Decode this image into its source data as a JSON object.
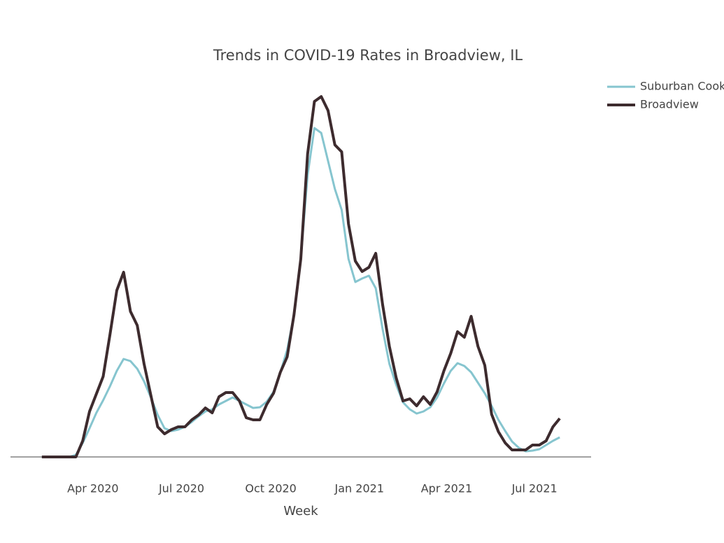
{
  "chart_data": {
    "type": "line",
    "title": "Trends in COVID-19 Rates in Broadview, IL",
    "x_label": "Week",
    "x": [
      0,
      1,
      2,
      3,
      4,
      5,
      6,
      7,
      8,
      9,
      10,
      11,
      12,
      13,
      14,
      15,
      16,
      17,
      18,
      19,
      20,
      21,
      22,
      23,
      24,
      25,
      26,
      27,
      28,
      29,
      30,
      31,
      32,
      33,
      34,
      35,
      36,
      37,
      38,
      39,
      40,
      41,
      42,
      43,
      44,
      45,
      46,
      47,
      48,
      49,
      50,
      51,
      52,
      53,
      54,
      55,
      56,
      57,
      58,
      59,
      60,
      61,
      62,
      63,
      64,
      65,
      66,
      67,
      68,
      69,
      70,
      71,
      72,
      73,
      74,
      75,
      76
    ],
    "xlim": [
      -4.6,
      80.6
    ],
    "xticks": [
      {
        "value": 7.5,
        "label": "Apr 2020"
      },
      {
        "value": 20.5,
        "label": "Jul 2020"
      },
      {
        "value": 33.6,
        "label": "Oct 2020"
      },
      {
        "value": 46.6,
        "label": "Jan 2021"
      },
      {
        "value": 59.4,
        "label": "Apr 2021"
      },
      {
        "value": 72.3,
        "label": "Jul 2021"
      }
    ],
    "ylim": [
      0,
      110
    ],
    "series": [
      {
        "name": "Suburban Cook",
        "color": "#86c5cf",
        "values": [
          0,
          0,
          0,
          0,
          0,
          0.6,
          4,
          8.2,
          12.6,
          16.2,
          20.2,
          24.6,
          28,
          27.4,
          25.2,
          21.6,
          17,
          12,
          8.2,
          7.4,
          7.8,
          8.6,
          10,
          11.6,
          13,
          13.6,
          15,
          16,
          17,
          16,
          15,
          14,
          14.2,
          15.8,
          18.6,
          24.2,
          30.6,
          40.6,
          56.6,
          80.6,
          94,
          92.6,
          84.6,
          76.6,
          70.6,
          56.6,
          50,
          51,
          51.8,
          48.2,
          36.6,
          26.6,
          20.6,
          15.6,
          13.6,
          12.4,
          13,
          14.2,
          17,
          21,
          24.6,
          26.8,
          26,
          24.2,
          21.2,
          18.2,
          14.6,
          10.6,
          7.4,
          4.4,
          2.6,
          1.6,
          1.8,
          2.2,
          3.4,
          4.6,
          5.6
        ]
      },
      {
        "name": "Broadview",
        "color": "#3d2b2e",
        "values": [
          0,
          0,
          0,
          0,
          0,
          0,
          4.6,
          13,
          18,
          23,
          35,
          47.6,
          52.8,
          41.6,
          37.6,
          26.6,
          17.6,
          8.6,
          6.6,
          7.8,
          8.6,
          8.6,
          10.6,
          12,
          14,
          12.6,
          17.2,
          18.4,
          18.4,
          16,
          11.2,
          10.6,
          10.6,
          15,
          18.2,
          24.2,
          28.6,
          40.6,
          56.6,
          86.6,
          101.6,
          103,
          99,
          89.2,
          87.2,
          66.6,
          56,
          53,
          54.2,
          58.2,
          43.6,
          31.6,
          22.6,
          16,
          16.6,
          14.6,
          17.2,
          15,
          18.6,
          24.6,
          29.6,
          35.8,
          34.2,
          40.2,
          31.6,
          26.2,
          12.2,
          7.2,
          4,
          2,
          2,
          2,
          3.4,
          3.4,
          4.6,
          8.6,
          11
        ]
      }
    ]
  }
}
